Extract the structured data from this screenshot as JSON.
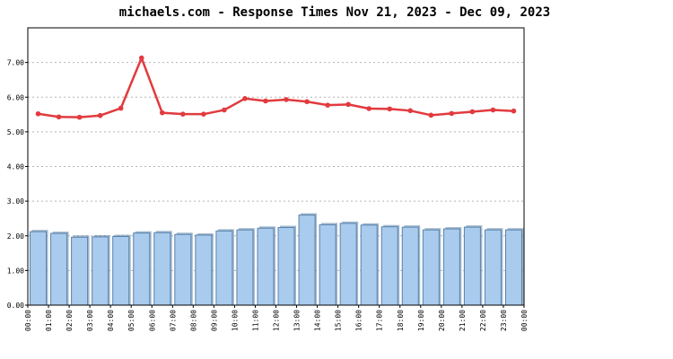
{
  "chart_data": {
    "type": "bar",
    "title": "michaels.com - Response Times Nov 21, 2023 - Dec 09, 2023",
    "xlabel": "",
    "ylabel": "",
    "ylim": [
      0,
      8
    ],
    "yticks": [
      "0.00",
      "1.00",
      "2.00",
      "3.00",
      "4.00",
      "5.00",
      "6.00",
      "7.00"
    ],
    "xticks": [
      "00:00",
      "01:00",
      "02:00",
      "03:00",
      "04:00",
      "05:00",
      "06:00",
      "07:00",
      "08:00",
      "09:00",
      "10:00",
      "11:00",
      "12:00",
      "13:00",
      "14:00",
      "15:00",
      "16:00",
      "17:00",
      "18:00",
      "19:00",
      "20:00",
      "21:00",
      "22:00",
      "23:00",
      "00:00"
    ],
    "grid": true,
    "bar_series": {
      "color": "#a8cbee",
      "edge_color": "#5a82a8",
      "values": [
        2.12,
        2.07,
        1.96,
        1.97,
        1.98,
        2.08,
        2.09,
        2.04,
        2.02,
        2.14,
        2.17,
        2.22,
        2.24,
        2.6,
        2.32,
        2.36,
        2.31,
        2.26,
        2.25,
        2.17,
        2.2,
        2.25,
        2.17,
        2.17
      ]
    },
    "line_series": {
      "color": "#e23a3e",
      "values": [
        5.52,
        5.43,
        5.42,
        5.47,
        5.68,
        7.13,
        5.55,
        5.51,
        5.51,
        5.63,
        5.96,
        5.89,
        5.93,
        5.87,
        5.77,
        5.79,
        5.67,
        5.66,
        5.61,
        5.48,
        5.53,
        5.58,
        5.63,
        5.6
      ]
    }
  }
}
